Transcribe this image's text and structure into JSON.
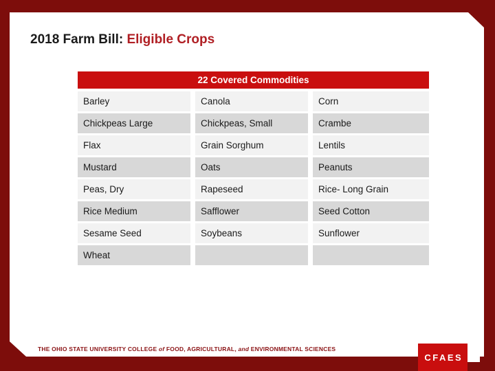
{
  "slide": {
    "title": {
      "prefix": "2018 Farm Bill: ",
      "highlight": "Eligible Crops"
    },
    "table": {
      "header": "22 Covered Commodities",
      "rows": [
        [
          "Barley",
          "Canola",
          "Corn"
        ],
        [
          "Chickpeas Large",
          "Chickpeas, Small",
          "Crambe"
        ],
        [
          "Flax",
          "Grain Sorghum",
          "Lentils"
        ],
        [
          "Mustard",
          "Oats",
          "Peanuts"
        ],
        [
          "Peas, Dry",
          "Rapeseed",
          "Rice- Long Grain"
        ],
        [
          "Rice Medium",
          "Safflower",
          "Seed Cotton"
        ],
        [
          "Sesame Seed",
          "Soybeans",
          "Sunflower"
        ],
        [
          "Wheat",
          "",
          ""
        ]
      ]
    },
    "footer": {
      "wordmark_part1": "THE OHIO STATE UNIVERSITY COLLEGE ",
      "wordmark_part2": "of",
      "wordmark_part3": " FOOD, AGRICULTURAL, ",
      "wordmark_part4": "and",
      "wordmark_part5": " ENVIRONMENTAL SCIENCES",
      "logo": "CFAES"
    },
    "colors": {
      "frame_red": "#7d0d0b",
      "header_red": "#c90f0f",
      "accent_red": "#b01f24",
      "row_light": "#f2f2f2",
      "row_dark": "#d8d8d8",
      "logo_red": "#c90e0e",
      "footer_red": "#8a1113"
    }
  }
}
